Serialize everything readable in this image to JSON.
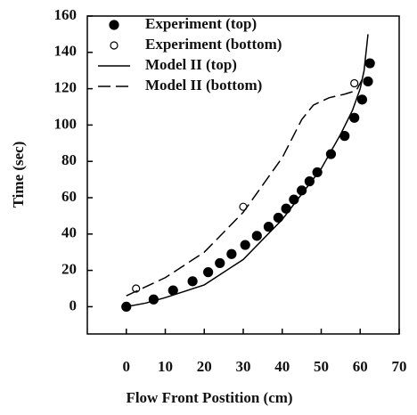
{
  "chart_data": {
    "type": "scatter",
    "xlabel": "Flow Front Postition (cm)",
    "ylabel": "Time (sec)",
    "xlim": [
      -10,
      70
    ],
    "xticks": [
      0,
      10,
      20,
      30,
      40,
      50,
      60,
      70
    ],
    "ylim": [
      -15,
      160
    ],
    "yticks": [
      0,
      20,
      40,
      60,
      80,
      100,
      120,
      140,
      160
    ],
    "legend": "upper left",
    "series": [
      {
        "name": "Experiment (top)",
        "mode": "markers",
        "marker": "filled",
        "color": "#000000",
        "x": [
          0,
          7,
          12,
          17,
          21,
          24,
          27,
          30.5,
          33.5,
          36.5,
          39,
          41,
          43,
          45,
          47,
          49,
          52.5,
          56,
          58.5,
          60.5,
          62,
          62.5
        ],
        "values": [
          0,
          4,
          9,
          14,
          19,
          24,
          29,
          34,
          39,
          44,
          49,
          54,
          59,
          64,
          69,
          74,
          84,
          94,
          104,
          114,
          124,
          134
        ]
      },
      {
        "name": "Experiment (bottom)",
        "mode": "markers",
        "marker": "open",
        "color": "#000000",
        "x": [
          2.5,
          30,
          58.5
        ],
        "values": [
          10,
          55,
          123
        ]
      },
      {
        "name": "Model II (top)",
        "mode": "line",
        "dash": "solid",
        "color": "#000000",
        "x": [
          0,
          5,
          10,
          20,
          30,
          40,
          50,
          55,
          58,
          60,
          61,
          62
        ],
        "values": [
          0,
          2,
          5,
          12,
          26,
          48,
          76,
          95,
          108,
          120,
          130,
          150
        ]
      },
      {
        "name": "Model II (bottom)",
        "mode": "line",
        "dash": "dashed",
        "color": "#000000",
        "x": [
          0,
          10,
          20,
          30,
          40,
          45,
          48,
          52,
          56,
          59,
          60.5
        ],
        "values": [
          6,
          16,
          30,
          52,
          82,
          103,
          111,
          115,
          117,
          119,
          125
        ]
      }
    ]
  }
}
